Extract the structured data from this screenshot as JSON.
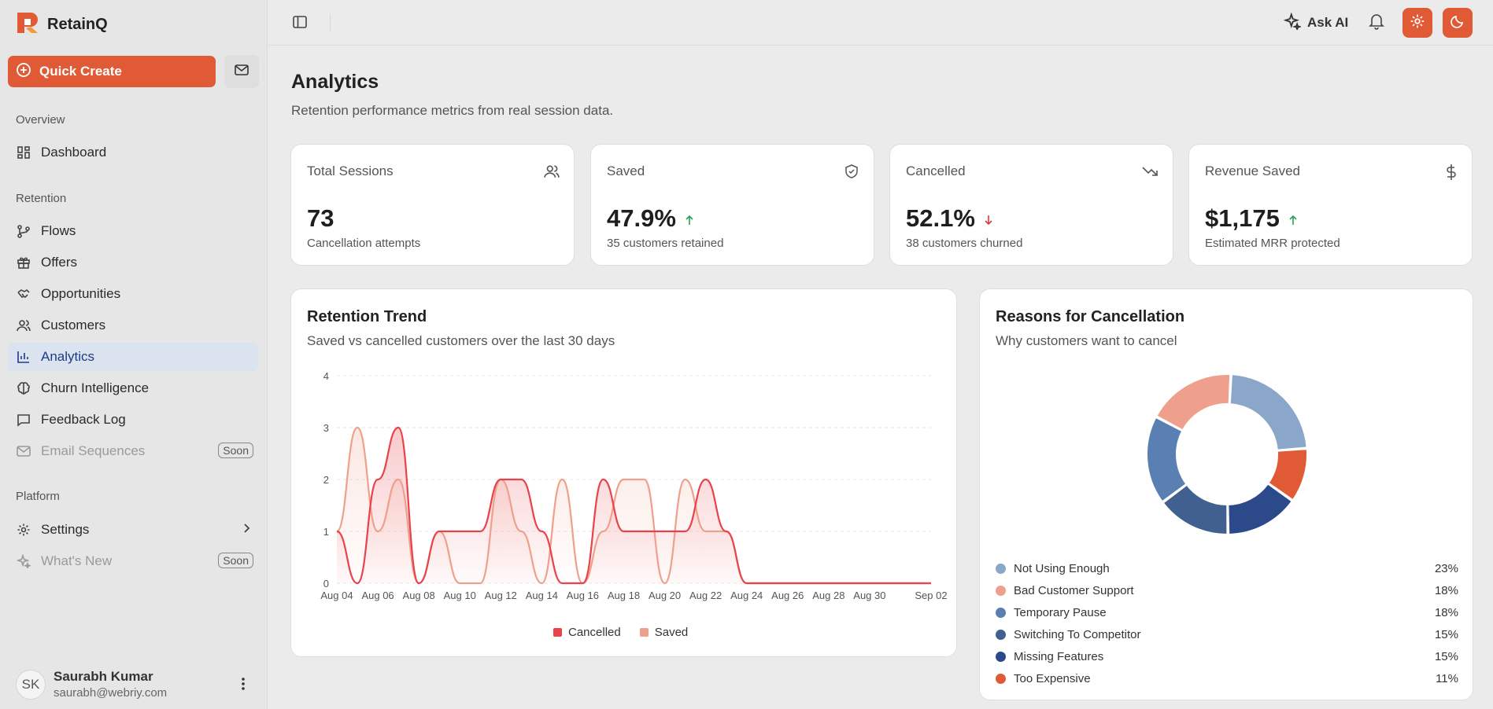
{
  "app": {
    "name": "RetainQ"
  },
  "sidebar": {
    "quick_create": "Quick Create",
    "sections": {
      "overview": "Overview",
      "retention": "Retention",
      "platform": "Platform"
    },
    "items": {
      "dashboard": "Dashboard",
      "flows": "Flows",
      "offers": "Offers",
      "opportunities": "Opportunities",
      "customers": "Customers",
      "analytics": "Analytics",
      "churn": "Churn Intelligence",
      "feedback": "Feedback Log",
      "email": "Email Sequences",
      "settings": "Settings",
      "whats_new": "What's New"
    },
    "soon_badge": "Soon",
    "user": {
      "initials": "SK",
      "name": "Saurabh Kumar",
      "email": "saurabh@webriy.com"
    }
  },
  "topbar": {
    "ask_ai": "Ask AI"
  },
  "page": {
    "title": "Analytics",
    "subtitle": "Retention performance metrics from real session data."
  },
  "stats": [
    {
      "title": "Total Sessions",
      "value": "73",
      "sub": "Cancellation attempts",
      "icon": "users-icon",
      "trend": "none"
    },
    {
      "title": "Saved",
      "value": "47.9%",
      "sub": "35 customers retained",
      "icon": "shield-check-icon",
      "trend": "up"
    },
    {
      "title": "Cancelled",
      "value": "52.1%",
      "sub": "38 customers churned",
      "icon": "trending-down-icon",
      "trend": "down"
    },
    {
      "title": "Revenue Saved",
      "value": "$1,175",
      "sub": "Estimated MRR protected",
      "icon": "dollar-icon",
      "trend": "up"
    }
  ],
  "colors": {
    "accent": "#e05a35",
    "up": "#22a355",
    "down": "#e0393b",
    "cancelled": "#e8424a",
    "saved": "#eea08c"
  },
  "chart_data": [
    {
      "type": "area",
      "title": "Retention Trend",
      "subtitle": "Saved vs cancelled customers over the last 30 days",
      "x": [
        "Aug 04",
        "Aug 05",
        "Aug 06",
        "Aug 07",
        "Aug 08",
        "Aug 09",
        "Aug 10",
        "Aug 11",
        "Aug 12",
        "Aug 13",
        "Aug 14",
        "Aug 15",
        "Aug 16",
        "Aug 17",
        "Aug 18",
        "Aug 19",
        "Aug 20",
        "Aug 21",
        "Aug 22",
        "Aug 23",
        "Aug 24",
        "Aug 25",
        "Aug 26",
        "Aug 27",
        "Aug 28",
        "Aug 29",
        "Aug 30",
        "Aug 31",
        "Sep 01",
        "Sep 02"
      ],
      "x_tick_labels": [
        "Aug 04",
        "Aug 06",
        "Aug 08",
        "Aug 10",
        "Aug 12",
        "Aug 14",
        "Aug 16",
        "Aug 18",
        "Aug 20",
        "Aug 22",
        "Aug 24",
        "Aug 26",
        "Aug 28",
        "Aug 30",
        "Sep 02"
      ],
      "ylim": [
        0,
        4
      ],
      "y_ticks": [
        0,
        1,
        2,
        3,
        4
      ],
      "grid": true,
      "legend": "bottom-center",
      "series": [
        {
          "name": "Cancelled",
          "values": [
            1,
            0,
            2,
            3,
            0,
            1,
            1,
            1,
            2,
            2,
            1,
            0,
            0,
            2,
            1,
            1,
            1,
            1,
            2,
            1,
            0,
            0,
            0,
            0,
            0,
            0,
            0,
            0,
            0,
            0
          ]
        },
        {
          "name": "Saved",
          "values": [
            1,
            3,
            1,
            2,
            0,
            1,
            0,
            0,
            2,
            1,
            0,
            2,
            0,
            1,
            2,
            2,
            0,
            2,
            1,
            1,
            0,
            0,
            0,
            0,
            0,
            0,
            0,
            0,
            0,
            0
          ]
        }
      ]
    },
    {
      "type": "pie",
      "title": "Reasons for Cancellation",
      "subtitle": "Why customers want to cancel",
      "slices": [
        {
          "label": "Not Using Enough",
          "value": 23,
          "pct_label": "23%",
          "color": "#8aa7c9"
        },
        {
          "label": "Too Expensive",
          "value": 11,
          "pct_label": "11%",
          "color": "#e05a35"
        },
        {
          "label": "Missing Features",
          "value": 15,
          "pct_label": "15%",
          "color": "#2c4a8a"
        },
        {
          "label": "Switching To Competitor",
          "value": 15,
          "pct_label": "15%",
          "color": "#42608f"
        },
        {
          "label": "Temporary Pause",
          "value": 18,
          "pct_label": "18%",
          "color": "#5a7fb3"
        },
        {
          "label": "Bad Customer Support",
          "value": 18,
          "pct_label": "18%",
          "color": "#eea08c"
        }
      ],
      "legend_order": [
        "Not Using Enough",
        "Bad Customer Support",
        "Temporary Pause",
        "Switching To Competitor",
        "Missing Features",
        "Too Expensive"
      ]
    }
  ]
}
